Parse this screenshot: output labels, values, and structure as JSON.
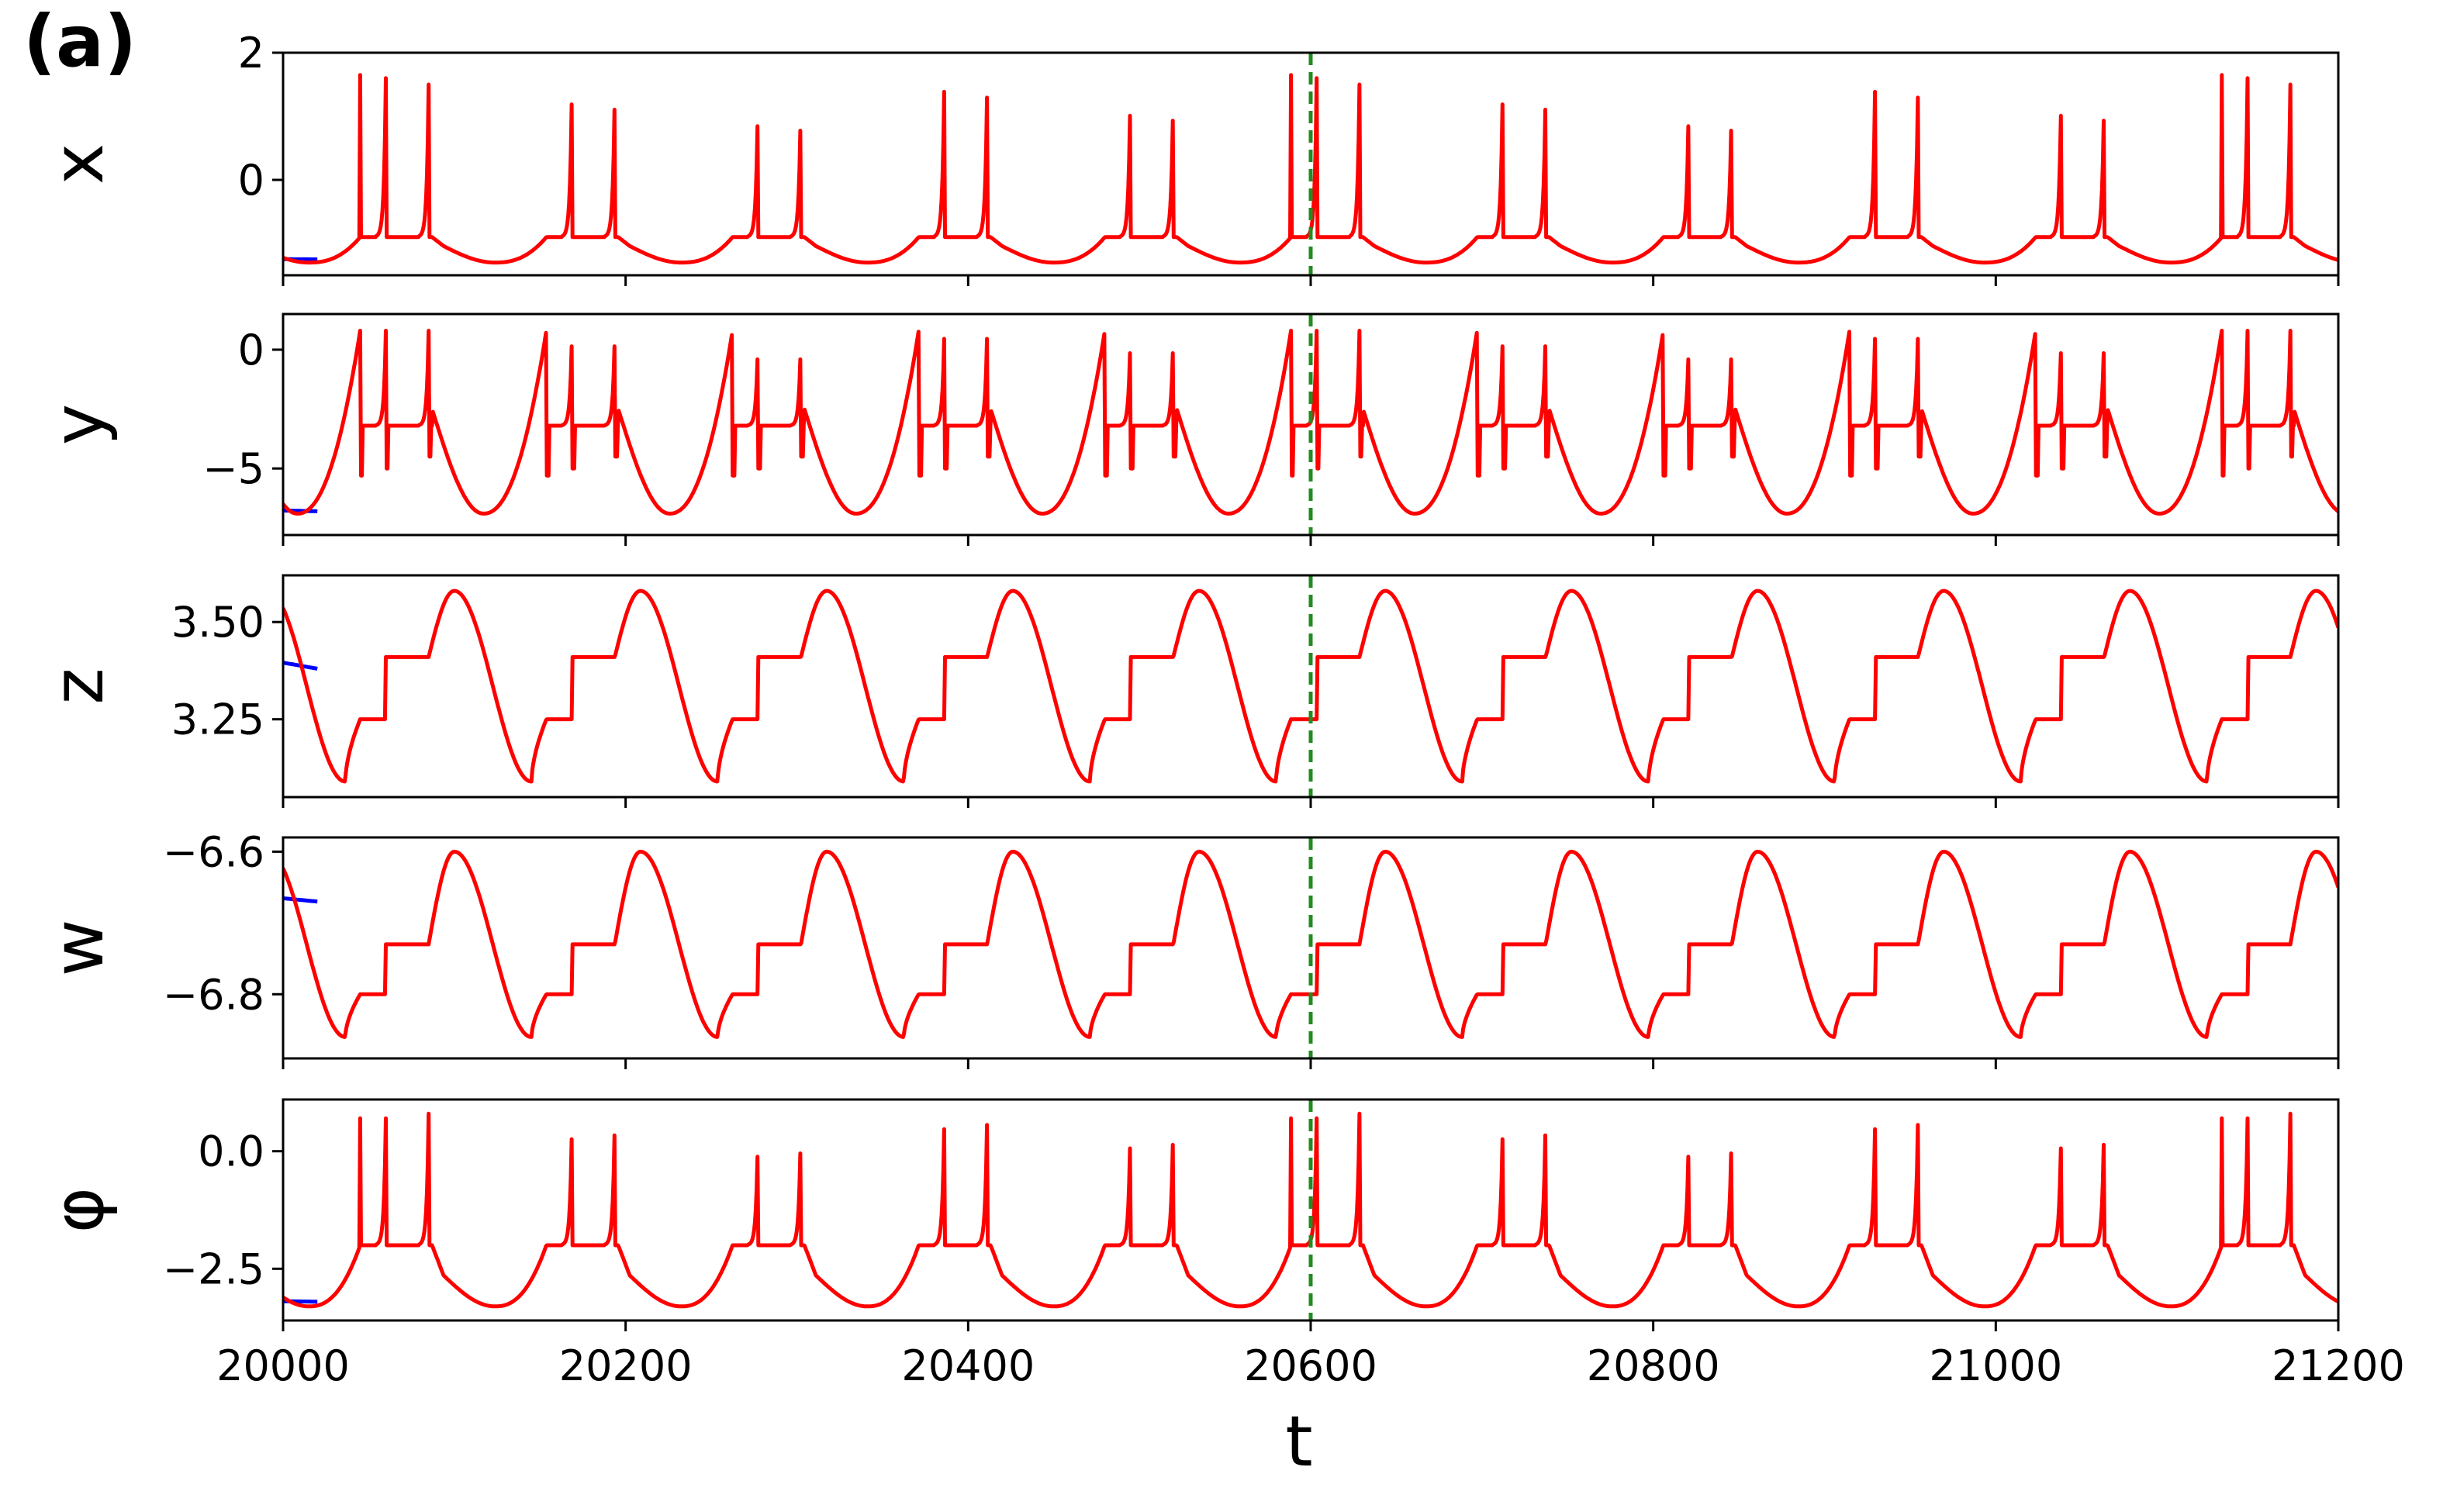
{
  "panel_label": "(a)",
  "xlabel": "t",
  "x_tick_labels": [
    "20000",
    "20200",
    "20400",
    "20600",
    "20800",
    "21000",
    "21200"
  ],
  "colors": {
    "trajectory_a": "#0000ff",
    "trajectory_b": "#ff0000",
    "marker_line": "#228b22"
  },
  "chart_data": [
    {
      "type": "line",
      "ylabel": "x",
      "xlim": [
        20000,
        21200
      ],
      "ylim": [
        -1.5,
        2.0
      ],
      "yticks": [
        0,
        2
      ],
      "ytick_labels": [
        "0",
        "2"
      ],
      "marker_x": 20600,
      "burst_period": 108.7,
      "burst_times": [
        0,
        15,
        40
      ],
      "start_time": 20045,
      "spike_peaks": [
        1.65,
        1.6,
        1.5
      ],
      "baseline": -1.2,
      "trough": -1.3,
      "blue_transient": {
        "x_end": 20020,
        "value": -1.25
      },
      "series": [
        {
          "color": "#ff0000"
        },
        {
          "color": "#0000ff"
        }
      ]
    },
    {
      "type": "line",
      "ylabel": "y",
      "xlim": [
        20000,
        21200
      ],
      "ylim": [
        -7.8,
        1.5
      ],
      "yticks": [
        -5,
        0
      ],
      "ytick_labels": [
        "−5",
        "0"
      ],
      "marker_x": 20600,
      "burst_period": 108.7,
      "burst_times": [
        0,
        15,
        40
      ],
      "start_time": 20045,
      "spike_peaks": [
        0.8,
        0.8,
        0.8
      ],
      "spike_dips": [
        -5.3,
        -5.0,
        -4.5
      ],
      "baseline": -2.5,
      "trough": -6.9,
      "blue_transient": {
        "x_end": 20020,
        "value": -6.8
      },
      "series": [
        {
          "color": "#ff0000"
        },
        {
          "color": "#0000ff"
        }
      ]
    },
    {
      "type": "line",
      "ylabel": "z",
      "xlim": [
        20000,
        21200
      ],
      "ylim": [
        3.05,
        3.62
      ],
      "yticks": [
        3.25,
        3.5
      ],
      "ytick_labels": [
        "3.25",
        "3.50"
      ],
      "marker_x": 20600,
      "burst_period": 108.7,
      "start_time": 20045,
      "peak": 3.58,
      "trough": 3.09,
      "step_levels": [
        3.25,
        3.41
      ],
      "blue_transient": {
        "x_end": 20020,
        "value": 3.38
      },
      "series": [
        {
          "color": "#ff0000"
        },
        {
          "color": "#0000ff"
        }
      ]
    },
    {
      "type": "line",
      "ylabel": "w",
      "xlim": [
        20000,
        21200
      ],
      "ylim": [
        -6.89,
        -6.58
      ],
      "yticks": [
        -6.8,
        -6.6
      ],
      "ytick_labels": [
        "−6.8",
        "−6.6"
      ],
      "marker_x": 20600,
      "burst_period": 108.7,
      "start_time": 20045,
      "peak": -6.6,
      "trough": -6.86,
      "step_levels": [
        -6.8,
        -6.73
      ],
      "blue_transient": {
        "x_end": 20020,
        "value": -6.67
      },
      "series": [
        {
          "color": "#ff0000"
        },
        {
          "color": "#0000ff"
        }
      ]
    },
    {
      "type": "line",
      "ylabel": "φ",
      "xlim": [
        20000,
        21200
      ],
      "ylim": [
        -3.6,
        1.1
      ],
      "yticks": [
        -2.5,
        0
      ],
      "ytick_labels": [
        "−2.5",
        "0.0"
      ],
      "marker_x": 20600,
      "burst_period": 108.7,
      "burst_times": [
        0,
        15,
        40
      ],
      "start_time": 20045,
      "spike_peaks": [
        0.7,
        0.7,
        0.8
      ],
      "inter_spike_low": -2.0,
      "trough": -3.3,
      "blue_transient": {
        "x_end": 20020,
        "value": -3.2
      },
      "series": [
        {
          "color": "#ff0000"
        },
        {
          "color": "#0000ff"
        }
      ]
    }
  ]
}
